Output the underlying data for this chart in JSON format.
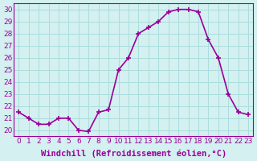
{
  "x": [
    0,
    1,
    2,
    3,
    4,
    5,
    6,
    7,
    8,
    9,
    10,
    11,
    12,
    13,
    14,
    15,
    16,
    17,
    18,
    19,
    20,
    21,
    22,
    23
  ],
  "y": [
    21.5,
    21.0,
    20.5,
    20.5,
    21.0,
    21.0,
    20.0,
    19.9,
    21.5,
    21.7,
    25.0,
    26.0,
    28.0,
    28.5,
    29.0,
    29.8,
    30.0,
    30.0,
    29.8,
    27.5,
    26.0,
    23.0,
    21.5,
    21.3
  ],
  "line_color": "#990099",
  "marker": "+",
  "marker_size": 5,
  "xlabel": "Windchill (Refroidissement éolien,°C)",
  "xlabel_fontsize": 7.5,
  "ylabel_ticks": [
    20,
    21,
    22,
    23,
    24,
    25,
    26,
    27,
    28,
    29,
    30
  ],
  "xtick_labels": [
    "0",
    "1",
    "2",
    "3",
    "4",
    "5",
    "6",
    "7",
    "8",
    "9",
    "10",
    "11",
    "12",
    "13",
    "14",
    "15",
    "16",
    "17",
    "18",
    "19",
    "20",
    "21",
    "22",
    "23"
  ],
  "ylim": [
    19.5,
    30.5
  ],
  "xlim": [
    -0.5,
    23.5
  ],
  "bg_color": "#d4f0f0",
  "grid_color": "#aadddd",
  "tick_fontsize": 6.5,
  "line_width": 1.2,
  "markeredgewidth": 1.2
}
